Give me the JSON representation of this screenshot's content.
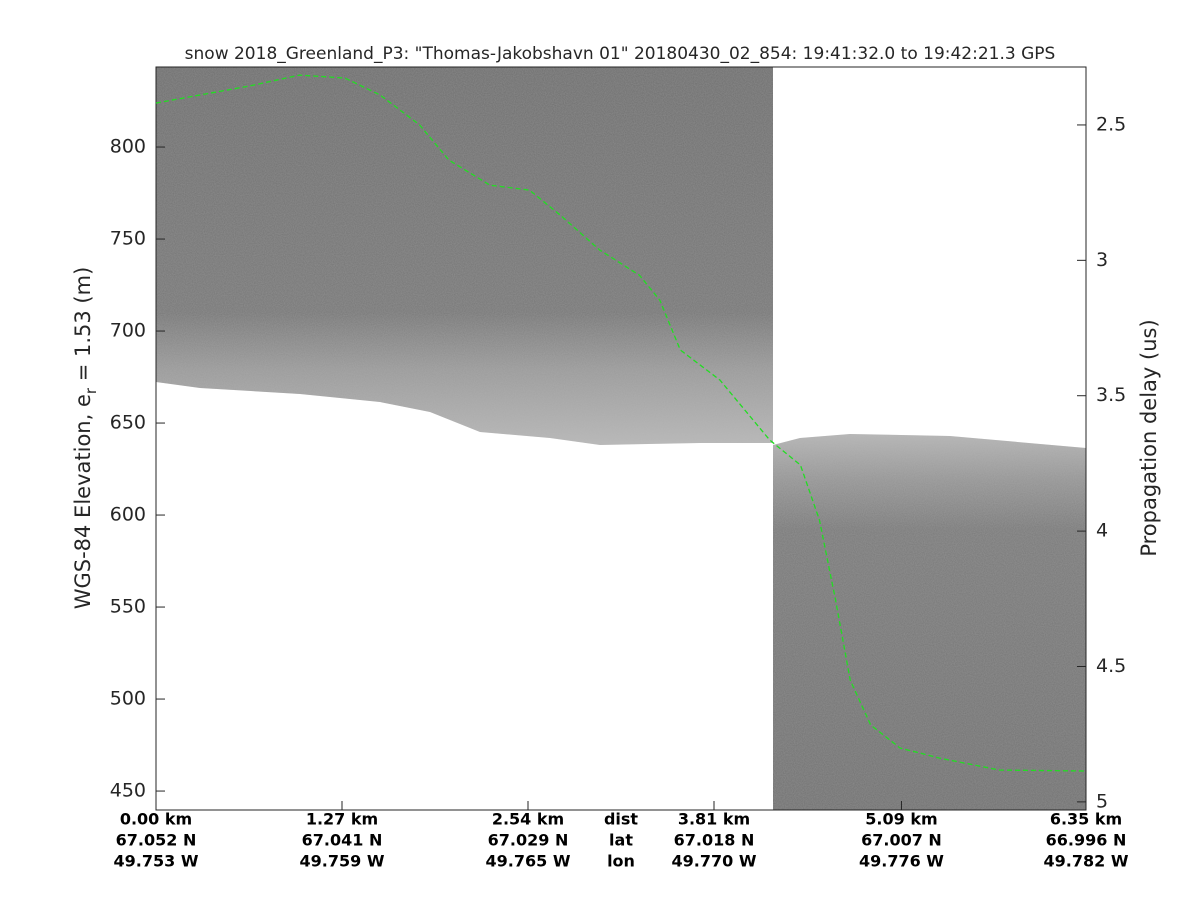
{
  "chart_data": {
    "type": "line",
    "title": "snow 2018_Greenland_P3: \"Thomas-Jakobshavn 01\"  20180430_02_854: 19:41:32.0 to 19:42:21.3 GPS",
    "y_label": [
      "WGS-84 Elevation, e",
      "r",
      " = 1.53 (m)"
    ],
    "y2_label": "Propagation delay (us)",
    "xlim": [
      0,
      6.35
    ],
    "xticks": [
      {
        "value": 0,
        "label": "0.00 km"
      },
      {
        "value": 1.27,
        "label": "1.27 km"
      },
      {
        "value": 2.54,
        "label": "2.54 km"
      },
      {
        "value": 3.81,
        "label": "3.81 km"
      },
      {
        "value": 5.09,
        "label": "5.09 km"
      },
      {
        "value": 6.35,
        "label": "6.35 km"
      }
    ],
    "lat_labels": [
      "67.052 N",
      "67.041 N",
      "67.029 N",
      "67.018 N",
      "67.007 N",
      "66.996 N"
    ],
    "lon_labels": [
      "49.753 W",
      "49.759 W",
      "49.765 W",
      "49.770 W",
      "49.776 W",
      "49.782 W"
    ],
    "row_labels": [
      "dist",
      "lat",
      "lon"
    ],
    "ylim": [
      439.7,
      843.5
    ],
    "yticks": [
      450,
      500,
      550,
      600,
      650,
      700,
      750,
      800
    ],
    "y2lim": [
      2.286,
      5.03
    ],
    "y2ticks": [
      2.5,
      3,
      3.5,
      4,
      4.5,
      5
    ],
    "series": [
      {
        "name": "surface",
        "color": "#22dd22",
        "dashed": true,
        "x": [
          0,
          0.3,
          0.64,
          0.98,
          1.29,
          1.53,
          1.8,
          2.0,
          2.28,
          2.55,
          2.76,
          3.03,
          3.3,
          3.44,
          3.58,
          3.85,
          4.19,
          4.4,
          4.53,
          4.64,
          4.74,
          4.88,
          5.08,
          5.35,
          5.76,
          6.35
        ],
        "values": [
          823.9,
          828.3,
          833.2,
          839.1,
          837.5,
          828.3,
          812,
          792.9,
          779.3,
          776.6,
          763,
          744,
          730.4,
          716.8,
          689.7,
          673.4,
          640.8,
          627.2,
          597.3,
          553.8,
          510.3,
          485.9,
          473.4,
          467.9,
          461.4,
          460.9
        ]
      }
    ]
  }
}
